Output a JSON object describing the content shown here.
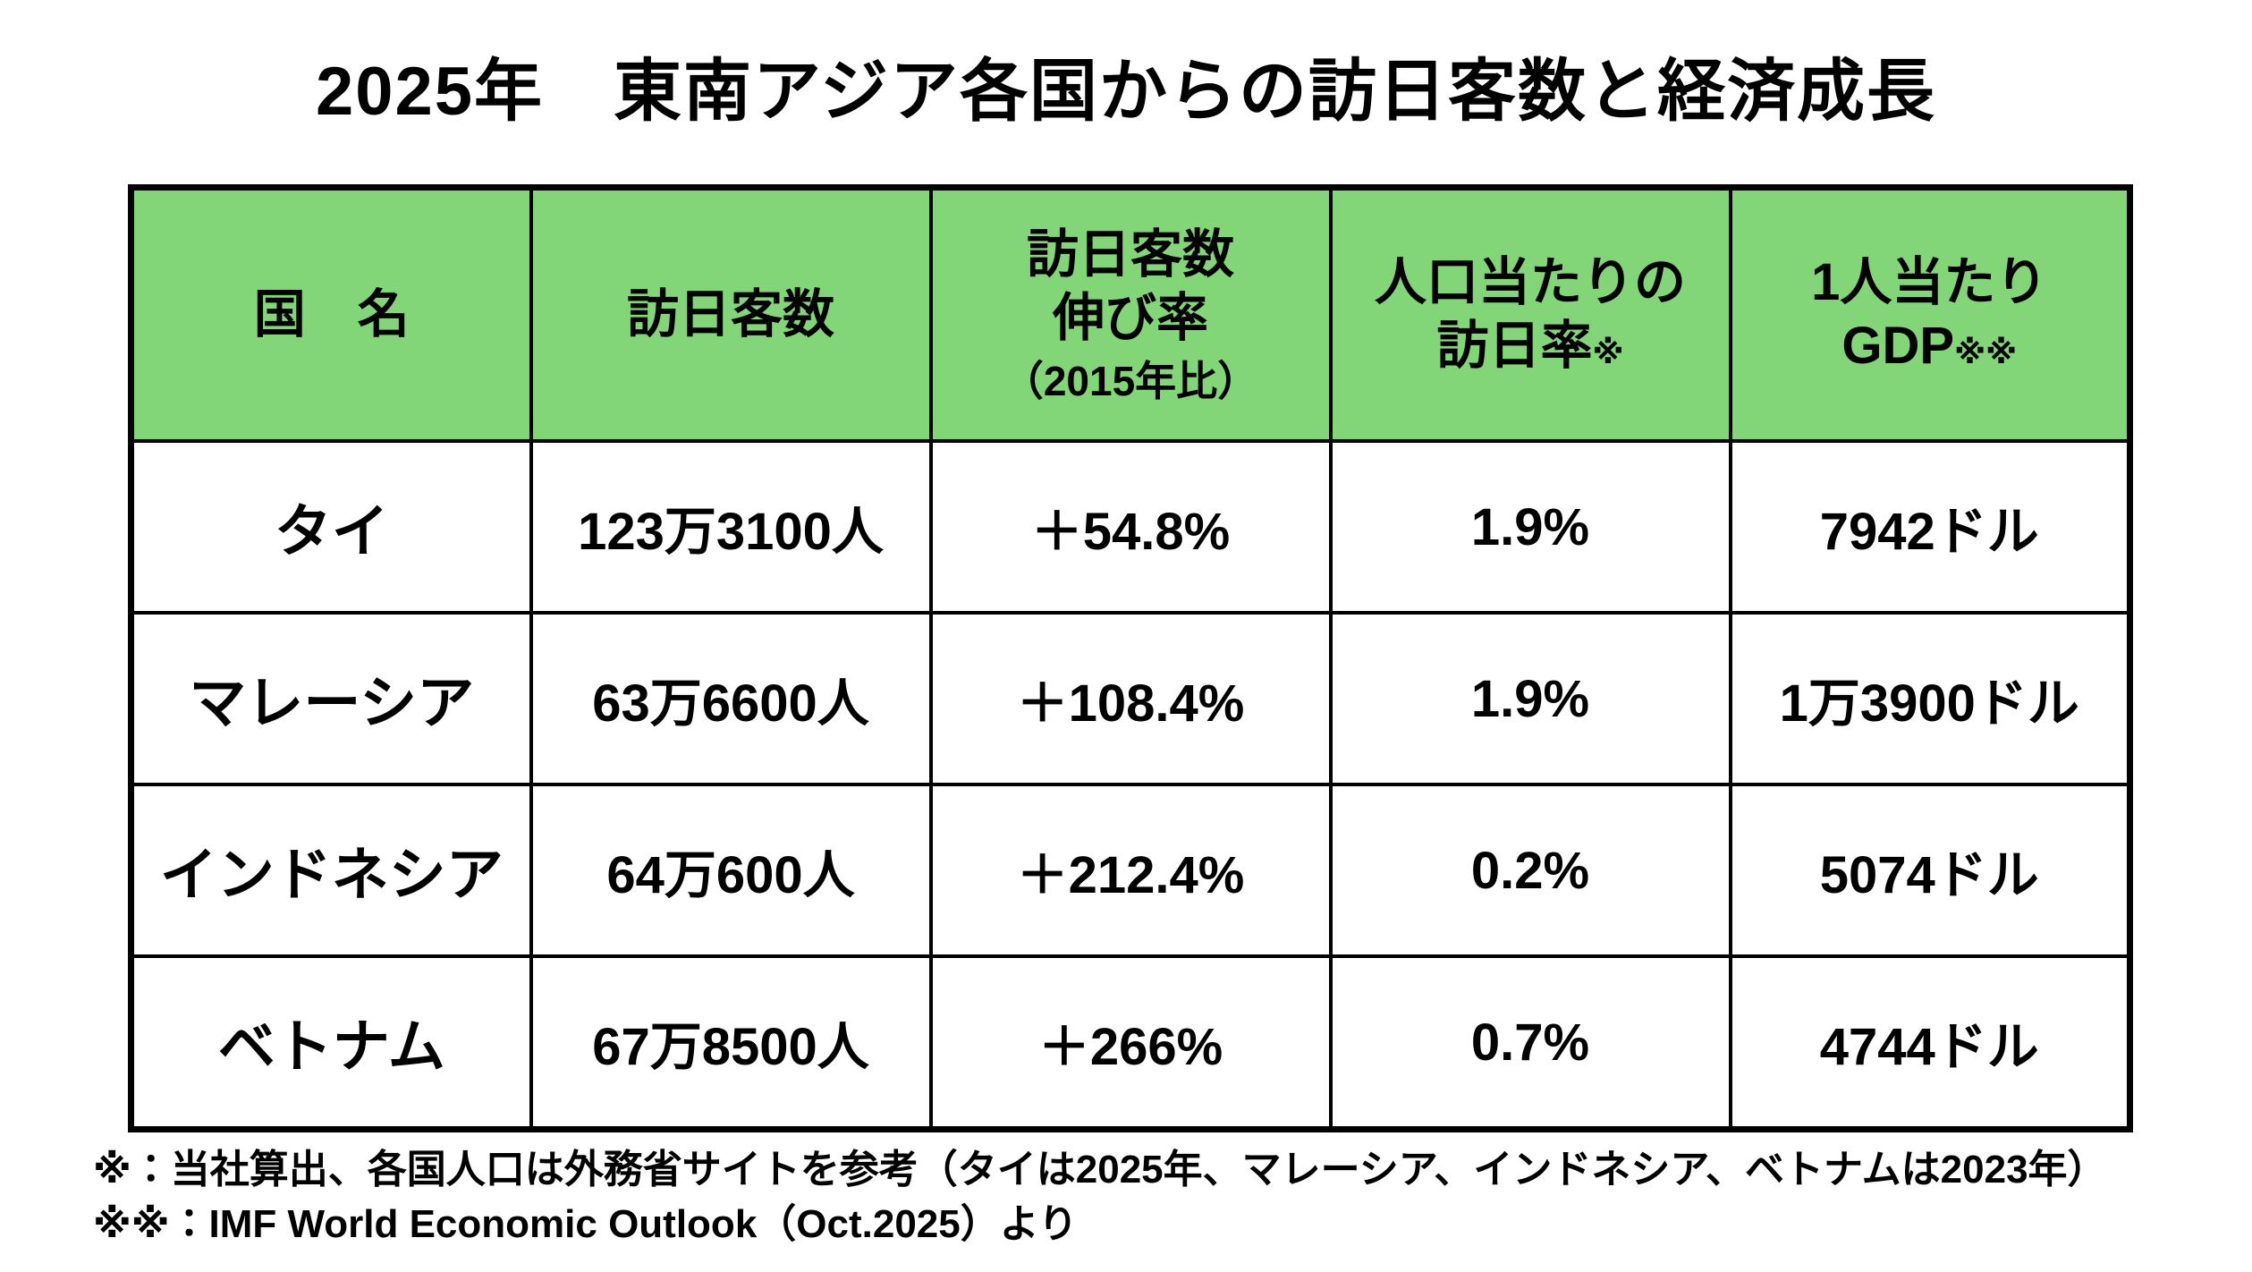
{
  "title": "2025年　東南アジア各国からの訪日客数と経済成長",
  "colors": {
    "header_green": "#82D678",
    "border_black": "#000000",
    "background": "#ffffff"
  },
  "table": {
    "header": {
      "col1": {
        "line1": "国　名"
      },
      "col2": {
        "line1": "訪日客数"
      },
      "col3": {
        "line1": "訪日客数",
        "line2": "伸び率",
        "line3": "（2015年比）"
      },
      "col4": {
        "line1": "人口当たりの",
        "line2": "訪日率",
        "mark": "※"
      },
      "col5": {
        "line1": "1人当たり",
        "line2": "GDP",
        "mark": "※※"
      }
    }
  },
  "chart_data": {
    "type": "table",
    "title": "2025年　東南アジア各国からの訪日客数と経済成長",
    "columns": [
      "国　名",
      "訪日客数",
      "訪日客数伸び率（2015年比）",
      "人口当たりの訪日率※",
      "1人当たりGDP※※"
    ],
    "rows": [
      {
        "country": "タイ",
        "visitors": "123万3100人",
        "growth_vs_2015": "＋54.8%",
        "visit_rate_per_capita": "1.9%",
        "gdp_per_capita": "7942ドル"
      },
      {
        "country": "マレーシア",
        "visitors": "63万6600人",
        "growth_vs_2015": "＋108.4%",
        "visit_rate_per_capita": "1.9%",
        "gdp_per_capita": "1万3900ドル"
      },
      {
        "country": "インドネシア",
        "visitors": "64万600人",
        "growth_vs_2015": "＋212.4%",
        "visit_rate_per_capita": "0.2%",
        "gdp_per_capita": "5074ドル"
      },
      {
        "country": "ベトナム",
        "visitors": "67万8500人",
        "growth_vs_2015": "＋266%",
        "visit_rate_per_capita": "0.7%",
        "gdp_per_capita": "4744ドル"
      }
    ],
    "legend": "none",
    "grid": "table borders on, black"
  },
  "footnotes": {
    "line1": "※：当社算出、各国人口は外務省サイトを参考（タイは2025年、マレーシア、インドネシア、ベトナムは2023年）",
    "line2": "※※：IMF World Economic Outlook（Oct.2025）より"
  }
}
